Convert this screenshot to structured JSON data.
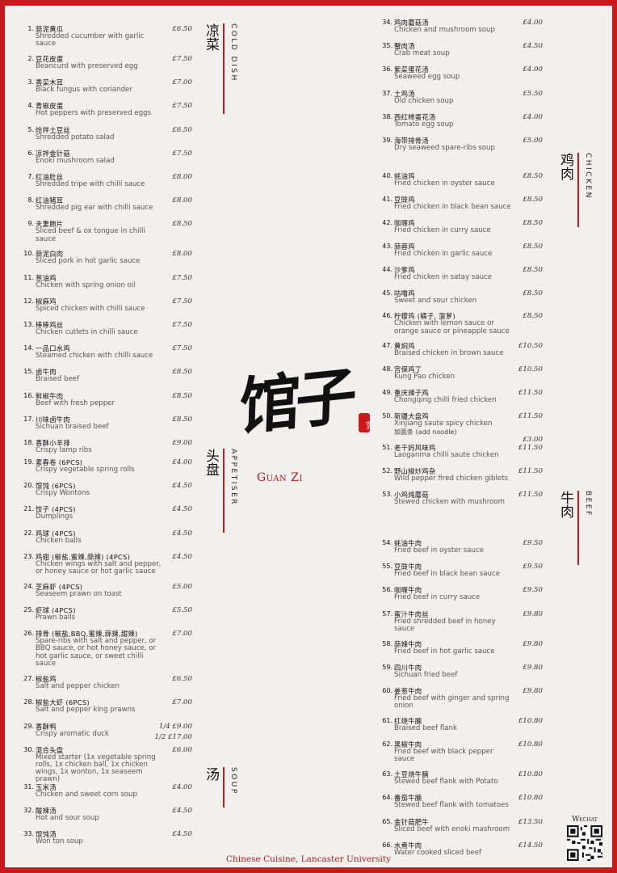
{
  "sections": {
    "cold": {
      "zh": "凉菜",
      "en": "COLD DISH"
    },
    "appetiser": {
      "zh": "头盘",
      "en": "APPETISER"
    },
    "soup": {
      "zh": "汤",
      "en": "SOUP"
    },
    "chicken": {
      "zh": "鸡肉",
      "en": "CHICKEN"
    },
    "beef": {
      "zh": "牛肉",
      "en": "BEEF"
    }
  },
  "logo": {
    "calligraphy": "馆子",
    "name": "Guan Zi",
    "seal": "馆子"
  },
  "footer": "Chinese Cuisine, Lancaster University",
  "wechat": "Wechat",
  "groups": [
    {
      "col": "left",
      "items": [
        {
          "n": "1.",
          "zh": "蒜泥黄瓜",
          "en": "Shredded cucumber with garlic sauce",
          "p": "£6.50"
        },
        {
          "n": "2.",
          "zh": "豆花皮蛋",
          "en": "Beancurd with preserved egg",
          "p": "£7.50"
        },
        {
          "n": "3.",
          "zh": "香菜木耳",
          "en": "Black fungus with coriander",
          "p": "£7.00"
        },
        {
          "n": "4.",
          "zh": "青椒皮蛋",
          "en": "Hot peppers with preserved eggs",
          "p": "£7.50"
        },
        {
          "n": "5.",
          "zh": "炝拌土豆丝",
          "en": "Shredded potato salad",
          "p": "£6.50"
        },
        {
          "n": "6.",
          "zh": "凉拌金针菇",
          "en": "Enoki mushroom salad",
          "p": "£7.50"
        },
        {
          "n": "7.",
          "zh": "红油肚丝",
          "en": "Shredded tripe with chilli sauce",
          "p": "£8.00"
        },
        {
          "n": "8.",
          "zh": "红油猪耳",
          "en": "Shredded pig ear with chilli sauce",
          "p": "£8.00"
        },
        {
          "n": "9.",
          "zh": "夫妻肺片",
          "en": "Sliced beef & ox tongue in chilli sauce",
          "p": "£8.50"
        },
        {
          "n": "10.",
          "zh": "蒜泥白肉",
          "en": "Sliced pork in hot garlic sauce",
          "p": "£8.00"
        },
        {
          "n": "11.",
          "zh": "葱油鸡",
          "en": "Chicken with spring onion oil",
          "p": "£7.50"
        },
        {
          "n": "12.",
          "zh": "椒麻鸡",
          "en": "Spiced chicken with chilli sauce",
          "p": "£7.50"
        },
        {
          "n": "13.",
          "zh": "棒棒鸡丝",
          "en": "Chicken cutlets in chilli sauce",
          "p": "£7.50"
        },
        {
          "n": "14.",
          "zh": "一品口水鸡",
          "en": "Steamed chicken with chilli sauce",
          "p": "£7.50"
        },
        {
          "n": "15.",
          "zh": "卤牛肉",
          "en": "Braised beef",
          "p": "£8.50"
        },
        {
          "n": "16.",
          "zh": "鲜椒牛肉",
          "en": "Beef with fresh pepper",
          "p": "£8.50"
        },
        {
          "n": "17.",
          "zh": "川味卤牛肉",
          "en": "Sichuan braised beef",
          "p": "£8.50"
        },
        {
          "n": "18.",
          "zh": "香酥小羊排",
          "en": "Crispy lamp ribs",
          "p": "£9.00"
        }
      ]
    },
    {
      "col": "left",
      "items": [
        {
          "n": "19.",
          "zh": "素春卷 (6PCS)",
          "en": "Crispy vegetable spring rolls",
          "p": "£4.00"
        },
        {
          "n": "20.",
          "zh": "馄饨 (6PCS)",
          "en": "Crispy Wontons",
          "p": "£4.50"
        },
        {
          "n": "21.",
          "zh": "饺子 (4PCS)",
          "en": "Dumplings",
          "p": "£4.50"
        },
        {
          "n": "22.",
          "zh": "鸡球 (4PCS)",
          "en": "Chicken balls",
          "p": "£4.50"
        },
        {
          "n": "23.",
          "zh": "鸡翅 (椒盐,蜜辣,蒜辣) (4PCS)",
          "en": "Chicken wings with salt and pepper, or honey sauce or hot garlic sauce",
          "p": "£4.50"
        },
        {
          "n": "24.",
          "zh": "芝麻虾 (4PCS)",
          "en": "Seaseem prawn on toast",
          "p": "£5.00"
        },
        {
          "n": "25.",
          "zh": "虾球 (4PCS)",
          "en": "Prawn balls",
          "p": "£5.50"
        },
        {
          "n": "26.",
          "zh": "排骨 (椒盐,BBQ,蜜辣,蒜辣,甜辣)",
          "en": "Spare-ribs with salt and pepper, or BBQ sauce, or hot honey sauce, or hot garlic sauce, or sweet chilli sauce",
          "p": "£7.00"
        },
        {
          "n": "27.",
          "zh": "椒盐鸡",
          "en": "Salt and pepper chicken",
          "p": "£6.50"
        },
        {
          "n": "28.",
          "zh": "椒盐大虾 (6PCS)",
          "en": "Salt and pepper king prawns",
          "p": "£7.00"
        },
        {
          "n": "29.",
          "zh": "香酥鸭",
          "en": "Crispy aromatic duck",
          "p": "1/4  £9.00",
          "p2": "1/2  £17.00"
        },
        {
          "n": "30.",
          "zh": "混合头盘",
          "en": "Mixed starter (1x vegetable spring rolls, 1x chicken ball, 1x chicken wings, 1x wonton, 1x seaseem prawn)",
          "p": "£6.00"
        }
      ]
    },
    {
      "col": "left",
      "items": [
        {
          "n": "31.",
          "zh": "玉米汤",
          "en": "Chicken and sweet corn soup",
          "p": "£4.00"
        },
        {
          "n": "32.",
          "zh": "酸辣汤",
          "en": "Hot and sour soup",
          "p": "£4.50"
        },
        {
          "n": "33.",
          "zh": "馄饨汤",
          "en": "Won ton soup",
          "p": "£4.50"
        }
      ]
    },
    {
      "col": "right",
      "items": [
        {
          "n": "34.",
          "zh": "鸡肉蘑菇汤",
          "en": "Chicken and mushroom soup",
          "p": "£4.00"
        },
        {
          "n": "35.",
          "zh": "蟹肉汤",
          "en": "Crab meat soup",
          "p": "£4.50"
        },
        {
          "n": "36.",
          "zh": "紫菜蛋花汤",
          "en": "Seaweed egg soup",
          "p": "£4.00"
        },
        {
          "n": "37.",
          "zh": "土鸡汤",
          "en": "Old chicken soup",
          "p": "£5.50"
        },
        {
          "n": "38.",
          "zh": "西红柿蛋花汤",
          "en": "Tomato egg soup",
          "p": "£4.00"
        },
        {
          "n": "39.",
          "zh": "海带排骨汤",
          "en": "Dry seaweed spare-ribs soup",
          "p": "£5.00"
        }
      ]
    },
    {
      "col": "right",
      "items": [
        {
          "n": "40.",
          "zh": "蚝油鸡",
          "en": "Fried chicken in oyster sauce",
          "p": "£8.50"
        },
        {
          "n": "41.",
          "zh": "豆豉鸡",
          "en": "Fried chicken in black bean sauce",
          "p": "£8.50"
        },
        {
          "n": "42.",
          "zh": "咖喱鸡",
          "en": "Fried chicken in curry sauce",
          "p": "£8.50"
        },
        {
          "n": "43.",
          "zh": "蒜蓉鸡",
          "en": "Fried chicken in garlic sauce",
          "p": "£8.50"
        },
        {
          "n": "44.",
          "zh": "沙爹鸡",
          "en": "Fried chicken in satay sauce",
          "p": "£8.50"
        },
        {
          "n": "45.",
          "zh": "咕噜鸡",
          "en": "Sweet and sour chicken",
          "p": "£8.50"
        },
        {
          "n": "46.",
          "zh": "柠檬鸡 (橘子, 菠萝)",
          "en": "Chicken with lemon sauce or orange sauce or pineapple sauce",
          "p": "£8.50"
        },
        {
          "n": "47.",
          "zh": "黄焖鸡",
          "en": "Braised chicken in brown sauce",
          "p": "£10.50"
        },
        {
          "n": "48.",
          "zh": "宫保鸡丁",
          "en": "Kung Pao chicken",
          "p": "£10.50"
        },
        {
          "n": "49.",
          "zh": "重庆辣子鸡",
          "en": "Chongqing chilli fried chicken",
          "p": "£11.50"
        },
        {
          "n": "50.",
          "zh": "新疆大盘鸡",
          "en": "Xinjiang saute spicy chicken",
          "p": "£11.50",
          "x": "加面条  (add noodle)",
          "xp": "£3.00"
        },
        {
          "n": "51.",
          "zh": "老干妈风味鸡",
          "en": "Laoganma chilli saute chicken",
          "p": "£11.50"
        },
        {
          "n": "52.",
          "zh": "野山椒炒鸡杂",
          "en": "Wild pepper fired chicken giblets",
          "p": "£11.50"
        },
        {
          "n": "53.",
          "zh": "小鸡炖蘑菇",
          "en": "Stewed chicken with mushroom",
          "p": "£11.50"
        }
      ]
    },
    {
      "col": "right",
      "items": [
        {
          "n": "54.",
          "zh": "蚝油牛肉",
          "en": "Fried beef in oyster sauce",
          "p": "£9.50"
        },
        {
          "n": "55.",
          "zh": "豆豉牛肉",
          "en": "Fried beef in black bean sauce",
          "p": "£9.50"
        },
        {
          "n": "56.",
          "zh": "咖喱牛肉",
          "en": "Fried beef in curry sauce",
          "p": "£9.50"
        },
        {
          "n": "57.",
          "zh": "蜜汁牛肉丝",
          "en": "Fried shredded beef in honey sauce",
          "p": "£9.80"
        },
        {
          "n": "58.",
          "zh": "蒜辣牛肉",
          "en": "Fried beef in hot garlic sauce",
          "p": "£9.80"
        },
        {
          "n": "59.",
          "zh": "四川牛肉",
          "en": "Sichuan fried beef",
          "p": "£9.80"
        },
        {
          "n": "60.",
          "zh": "姜葱牛肉",
          "en": "Fried beef with ginger and spring onion",
          "p": "£9.80"
        },
        {
          "n": "61.",
          "zh": "红烧牛腩",
          "en": "Braised beef flank",
          "p": "£10.80"
        },
        {
          "n": "62.",
          "zh": "黑椒牛肉",
          "en": "Fried beef with black pepper sauce",
          "p": "£10.80"
        },
        {
          "n": "63.",
          "zh": "土豆烧牛腩",
          "en": "Stewed beef flank with Potato",
          "p": "£10.80"
        },
        {
          "n": "64.",
          "zh": "番茄牛腩",
          "en": "Stewed beef flank with tomatoes",
          "p": "£10.80"
        },
        {
          "n": "65.",
          "zh": "金针菇肥牛",
          "en": "Sliced beef with enoki mashroom",
          "p": "£13.50"
        },
        {
          "n": "66.",
          "zh": "水煮牛肉",
          "en": "Water cooked sliced beef",
          "p": "£14.50"
        }
      ]
    }
  ]
}
